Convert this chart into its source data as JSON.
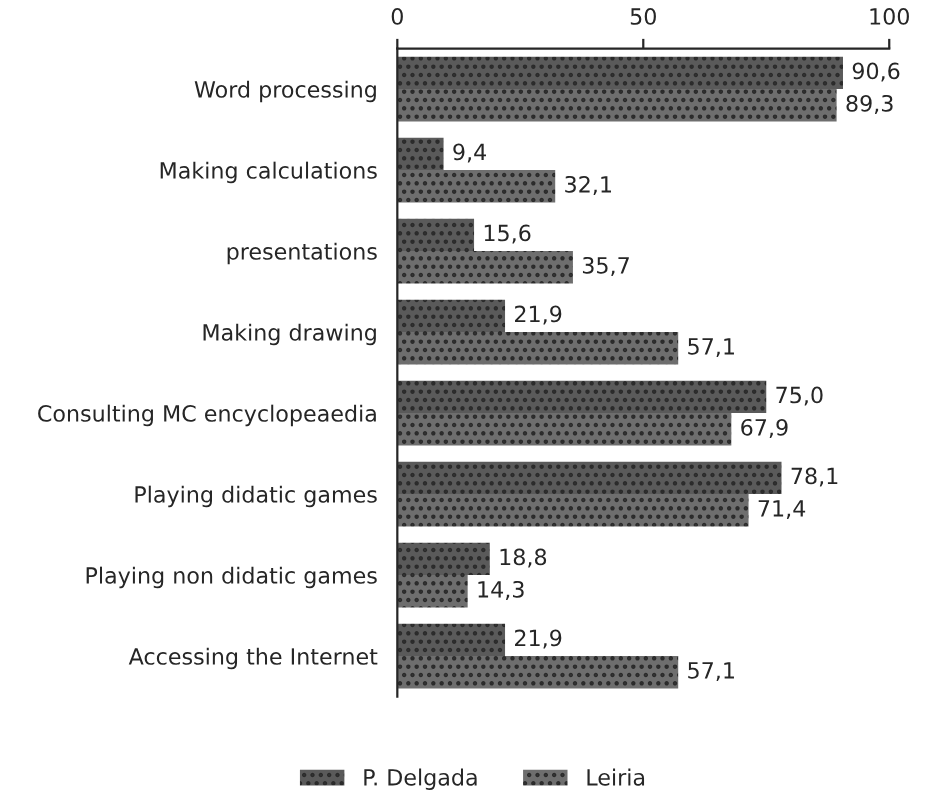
{
  "chart_data": {
    "type": "bar",
    "orientation": "horizontal",
    "categories": [
      "Word processing",
      "Making calculations",
      "presentations",
      "Making drawing",
      "Consulting MC encyclopeaedia",
      "Playing didatic games",
      "Playing non didatic games",
      "Accessing the Internet"
    ],
    "series": [
      {
        "name": "P. Delgada",
        "color": "#5a5a5a",
        "values": [
          90.6,
          9.4,
          15.6,
          21.9,
          75.0,
          78.1,
          18.8,
          21.9
        ],
        "value_labels": [
          "90,6",
          "9,4",
          "15,6",
          "21,9",
          "75,0",
          "78,1",
          "18,8",
          "21,9"
        ]
      },
      {
        "name": "Leiria",
        "color": "#6e6e6e",
        "values": [
          89.3,
          32.1,
          35.7,
          57.1,
          67.9,
          71.4,
          14.3,
          57.1
        ],
        "value_labels": [
          "89,3",
          "32,1",
          "35,7",
          "57,1",
          "67,9",
          "71,4",
          "14,3",
          "57,1"
        ]
      }
    ],
    "xlim": [
      0,
      100
    ],
    "xticks": [
      0,
      50,
      100
    ],
    "grid": false,
    "legend": "bottom"
  }
}
